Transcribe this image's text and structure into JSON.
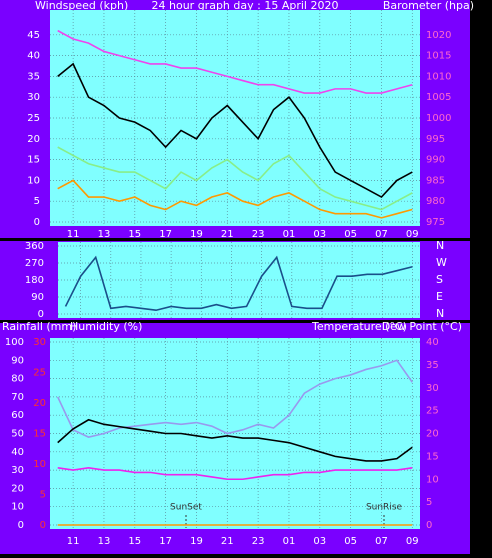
{
  "chart_data": [
    {
      "type": "line",
      "title": "24 hour graph day : 15 April 2020",
      "ylabel": "Windspeed (kph)",
      "categories": [
        null,
        "11",
        null,
        "13",
        null,
        "15",
        null,
        "17",
        null,
        "19",
        null,
        "21",
        null,
        "23",
        null,
        "01",
        null,
        "03",
        null,
        "05",
        null,
        "07",
        null,
        "09"
      ],
      "ylim": [
        0,
        50
      ],
      "yticks": [
        0,
        5,
        10,
        15,
        20,
        25,
        30,
        35,
        40,
        45
      ],
      "y2lim": [
        975,
        1025
      ],
      "y2ticks": [
        975,
        980,
        985,
        990,
        995,
        1000,
        1005,
        1010,
        1015,
        1020
      ],
      "grid": true,
      "series": [
        {
          "color": "#000000",
          "values": [
            35,
            38,
            30,
            28,
            25,
            24,
            22,
            18,
            22,
            20,
            25,
            28,
            24,
            20,
            27,
            30,
            25,
            18,
            12,
            10,
            8,
            6,
            10,
            12
          ]
        },
        {
          "color": "#88ee88",
          "values": [
            18,
            16,
            14,
            13,
            12,
            12,
            10,
            8,
            12,
            10,
            13,
            15,
            12,
            10,
            14,
            16,
            12,
            8,
            6,
            5,
            4,
            3,
            5,
            7
          ]
        },
        {
          "color": "#ff9900",
          "values": [
            8,
            10,
            6,
            6,
            5,
            6,
            4,
            3,
            5,
            4,
            6,
            7,
            5,
            4,
            6,
            7,
            5,
            3,
            2,
            2,
            2,
            1,
            2,
            3
          ]
        },
        {
          "name": "Barometer (hpa)",
          "color": "#ee44ee",
          "axis": "y2",
          "values": [
            1021,
            1019,
            1018,
            1016,
            1015,
            1014,
            1013,
            1013,
            1012,
            1012,
            1011,
            1010,
            1009,
            1008,
            1008,
            1007,
            1006,
            1006,
            1007,
            1007,
            1006,
            1006,
            1007,
            1008
          ]
        }
      ]
    },
    {
      "type": "line",
      "categories": [
        null,
        "11",
        null,
        "13",
        null,
        "15",
        null,
        "17",
        null,
        "19",
        null,
        "21",
        null,
        "23",
        null,
        "01",
        null,
        "03",
        null,
        "05",
        null,
        "07",
        null,
        "09"
      ],
      "ylim": [
        0,
        360
      ],
      "yticks": [
        0,
        90,
        180,
        270,
        360
      ],
      "y2lim": [
        0,
        360
      ],
      "y2ticks": [
        {
          "value": 0,
          "label": "N"
        },
        {
          "value": 90,
          "label": "E"
        },
        {
          "value": 180,
          "label": "S"
        },
        {
          "value": 270,
          "label": "W"
        },
        {
          "value": 360,
          "label": "N"
        }
      ],
      "grid": true,
      "series": [
        {
          "color": "#1a4f8a",
          "values": [
            40,
            200,
            300,
            30,
            40,
            30,
            20,
            40,
            30,
            30,
            50,
            30,
            40,
            200,
            300,
            40,
            30,
            30,
            200,
            200,
            210,
            210,
            230,
            250
          ]
        }
      ]
    },
    {
      "type": "line",
      "categories": [
        null,
        "11",
        null,
        "13",
        null,
        "15",
        null,
        "17",
        null,
        "19",
        null,
        "21",
        null,
        "23",
        null,
        "01",
        null,
        "03",
        null,
        "05",
        null,
        "07",
        null,
        "09"
      ],
      "ylim": [
        0,
        100
      ],
      "yticks": [
        0,
        10,
        20,
        30,
        40,
        50,
        60,
        70,
        80,
        90,
        100
      ],
      "y2lim": [
        0,
        40
      ],
      "y2ticks": [
        0,
        5,
        10,
        15,
        20,
        25,
        30,
        35,
        40
      ],
      "y3lim": [
        0,
        30
      ],
      "y3ticks": [
        0,
        5,
        10,
        15,
        20,
        25,
        30
      ],
      "grid": true,
      "annotations": [
        "SunSet",
        "SunRise"
      ],
      "series": [
        {
          "name": "Rainfall (mm)",
          "color": "#ff9900",
          "axis": "y3",
          "values": [
            0,
            0,
            0,
            0,
            0,
            0,
            0,
            0,
            0,
            0,
            0,
            0,
            0,
            0,
            0,
            0,
            0,
            0,
            0,
            0,
            0,
            0,
            0,
            0
          ]
        },
        {
          "name": "Humidity (%)",
          "color": "#9999ee",
          "values": [
            70,
            52,
            48,
            50,
            53,
            54,
            55,
            56,
            55,
            56,
            54,
            50,
            52,
            55,
            53,
            60,
            72,
            77,
            80,
            82,
            85,
            87,
            90,
            78
          ]
        },
        {
          "name": "Temperature (°C)",
          "color": "#000000",
          "axis": "y2",
          "values": [
            18,
            21,
            23,
            22,
            21.5,
            21,
            20.5,
            20,
            20,
            19.5,
            19,
            19.5,
            19,
            19,
            18.5,
            18,
            17,
            16,
            15,
            14.5,
            14,
            14,
            14.5,
            17
          ]
        },
        {
          "name": "Dew Point (°C)",
          "color": "#ee22ee",
          "axis": "y2",
          "values": [
            12.5,
            12,
            12.5,
            12,
            12,
            11.5,
            11.5,
            11,
            11,
            11,
            10.5,
            10,
            10,
            10.5,
            11,
            11,
            11.5,
            11.5,
            12,
            12,
            12,
            12,
            12,
            12.5
          ]
        }
      ]
    }
  ]
}
